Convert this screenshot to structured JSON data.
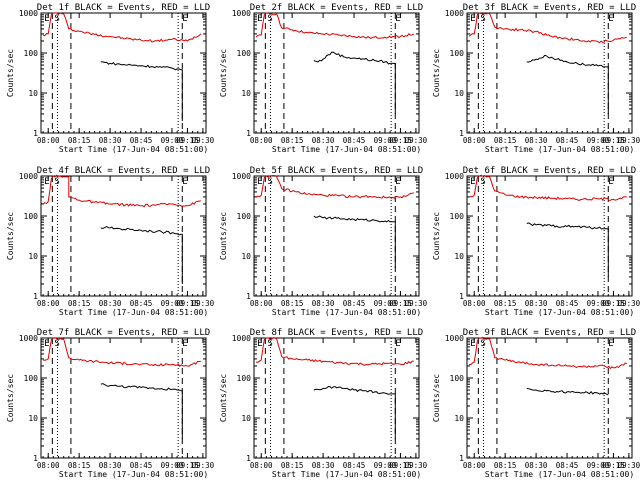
{
  "chart_data": [
    {
      "type": "line",
      "title": "Det 1f BLACK = Events, RED = LLD",
      "xlabel": "Start Time (17-Jun-04 08:51:00)",
      "ylabel": "Counts/sec",
      "x_ticks": [
        "08:00",
        "08:15",
        "08:30",
        "08:45",
        "09:00",
        "09:15",
        "09:30"
      ],
      "y_ticks": [
        "1",
        "10",
        "100",
        "1000"
      ],
      "ylim": [
        1,
        1000
      ],
      "yscale": "log",
      "marker_labels": [
        "E",
        "S",
        "E"
      ],
      "series": [
        {
          "name": "Events",
          "color": "#000000",
          "x": [
            "08:51",
            "08:55",
            "09:00",
            "09:10",
            "09:20",
            "09:30",
            "09:40",
            "09:50",
            "10:00",
            "10:05",
            "10:09",
            "10:10"
          ],
          "values": [
            60,
            58,
            55,
            52,
            50,
            48,
            46,
            44,
            42,
            40,
            38,
            2
          ]
        },
        {
          "name": "LLD",
          "color": "#dd0000",
          "x": [
            "07:55",
            "08:00",
            "08:03",
            "08:05",
            "08:15",
            "08:20",
            "08:30",
            "08:45",
            "09:00",
            "09:15",
            "09:30",
            "09:45",
            "10:00",
            "10:15",
            "10:28"
          ],
          "values": [
            280,
            300,
            900,
            1000,
            950,
            400,
            350,
            290,
            260,
            230,
            210,
            200,
            220,
            200,
            300
          ]
        }
      ]
    },
    {
      "type": "line",
      "title": "Det 2f BLACK = Events, RED = LLD",
      "xlabel": "Start Time (17-Jun-04 08:51:00)",
      "ylabel": "Counts/sec",
      "x_ticks": [
        "08:00",
        "08:15",
        "08:30",
        "08:45",
        "09:00",
        "09:15",
        "09:30"
      ],
      "y_ticks": [
        "1",
        "10",
        "100",
        "1000"
      ],
      "ylim": [
        1,
        1000
      ],
      "yscale": "log",
      "marker_labels": [
        "E",
        "S",
        "E"
      ],
      "series": [
        {
          "name": "Events",
          "color": "#000000",
          "x": [
            "08:51",
            "08:55",
            "09:00",
            "09:05",
            "09:10",
            "09:20",
            "09:30",
            "09:40",
            "09:50",
            "10:00",
            "10:05",
            "10:10"
          ],
          "values": [
            65,
            60,
            70,
            90,
            105,
            80,
            75,
            70,
            65,
            60,
            55,
            3
          ]
        },
        {
          "name": "LLD",
          "color": "#dd0000",
          "x": [
            "07:55",
            "08:00",
            "08:03",
            "08:05",
            "08:15",
            "08:20",
            "08:30",
            "08:45",
            "09:00",
            "09:15",
            "09:30",
            "09:45",
            "10:00",
            "10:15",
            "10:28"
          ],
          "values": [
            250,
            280,
            900,
            1000,
            950,
            420,
            380,
            320,
            300,
            280,
            260,
            240,
            250,
            260,
            300
          ]
        }
      ]
    },
    {
      "type": "line",
      "title": "Det 3f BLACK = Events, RED = LLD",
      "xlabel": "Start Time (17-Jun-04 08:51:00)",
      "ylabel": "Counts/sec",
      "x_ticks": [
        "08:00",
        "08:15",
        "08:30",
        "08:45",
        "09:00",
        "09:15",
        "09:30"
      ],
      "y_ticks": [
        "1",
        "10",
        "100",
        "1000"
      ],
      "ylim": [
        1,
        1000
      ],
      "yscale": "log",
      "marker_labels": [
        "E",
        "S",
        "E"
      ],
      "series": [
        {
          "name": "Events",
          "color": "#000000",
          "x": [
            "08:51",
            "08:55",
            "09:00",
            "09:10",
            "09:20",
            "09:30",
            "09:40",
            "09:50",
            "10:00",
            "10:05",
            "10:10"
          ],
          "values": [
            60,
            62,
            70,
            85,
            70,
            60,
            55,
            50,
            48,
            45,
            3
          ]
        },
        {
          "name": "LLD",
          "color": "#dd0000",
          "x": [
            "07:55",
            "08:00",
            "08:03",
            "08:05",
            "08:15",
            "08:20",
            "08:30",
            "08:45",
            "09:00",
            "09:15",
            "09:30",
            "09:45",
            "10:00",
            "10:15",
            "10:28"
          ],
          "values": [
            260,
            300,
            900,
            1000,
            950,
            450,
            400,
            380,
            340,
            260,
            230,
            200,
            190,
            210,
            250
          ]
        }
      ]
    },
    {
      "type": "line",
      "title": "Det 4f BLACK = Events, RED = LLD",
      "xlabel": "Start Time (17-Jun-04 08:51:00)",
      "ylabel": "Counts/sec",
      "x_ticks": [
        "08:00",
        "08:15",
        "08:30",
        "08:45",
        "09:00",
        "09:15",
        "09:30"
      ],
      "y_ticks": [
        "1",
        "10",
        "100",
        "1000"
      ],
      "ylim": [
        1,
        1000
      ],
      "yscale": "log",
      "marker_labels": [
        "E",
        "S",
        "E"
      ],
      "series": [
        {
          "name": "Events",
          "color": "#000000",
          "x": [
            "08:51",
            "08:55",
            "09:00",
            "09:10",
            "09:20",
            "09:30",
            "09:40",
            "09:50",
            "10:00",
            "10:05",
            "10:09",
            "10:10"
          ],
          "values": [
            50,
            52,
            50,
            48,
            46,
            44,
            42,
            40,
            38,
            36,
            35,
            2
          ]
        },
        {
          "name": "LLD",
          "color": "#dd0000",
          "x": [
            "07:55",
            "08:00",
            "08:03",
            "08:05",
            "08:15",
            "08:20",
            "08:30",
            "08:45",
            "09:00",
            "09:15",
            "09:30",
            "09:45",
            "10:00",
            "10:15",
            "10:28"
          ],
          "values": [
            200,
            230,
            850,
            1000,
            950,
            300,
            250,
            220,
            200,
            190,
            180,
            190,
            200,
            180,
            240
          ]
        }
      ]
    },
    {
      "type": "line",
      "title": "Det 5f BLACK = Events, RED = LLD",
      "xlabel": "Start Time (17-Jun-04 08:51:00)",
      "ylabel": "Counts/sec",
      "x_ticks": [
        "08:00",
        "08:15",
        "08:30",
        "08:45",
        "09:00",
        "09:15",
        "09:30"
      ],
      "y_ticks": [
        "1",
        "10",
        "100",
        "1000"
      ],
      "ylim": [
        1,
        1000
      ],
      "yscale": "log",
      "marker_labels": [
        "E",
        "S",
        "E"
      ],
      "series": [
        {
          "name": "Events",
          "color": "#000000",
          "x": [
            "08:51",
            "08:55",
            "09:00",
            "09:10",
            "09:20",
            "09:30",
            "09:40",
            "09:50",
            "10:00",
            "10:05",
            "10:10"
          ],
          "values": [
            100,
            95,
            90,
            88,
            85,
            82,
            80,
            78,
            75,
            72,
            5
          ]
        },
        {
          "name": "LLD",
          "color": "#dd0000",
          "x": [
            "07:55",
            "08:00",
            "08:03",
            "08:05",
            "08:15",
            "08:20",
            "08:30",
            "08:45",
            "09:00",
            "09:15",
            "09:30",
            "09:45",
            "10:00",
            "10:15",
            "10:28"
          ],
          "values": [
            300,
            330,
            900,
            1000,
            950,
            480,
            420,
            350,
            330,
            320,
            300,
            310,
            290,
            300,
            380
          ]
        }
      ]
    },
    {
      "type": "line",
      "title": "Det 6f BLACK = Events, RED = LLD",
      "xlabel": "Start Time (17-Jun-04 08:51:00)",
      "ylabel": "Counts/sec",
      "x_ticks": [
        "08:00",
        "08:15",
        "08:30",
        "08:45",
        "09:00",
        "09:15",
        "09:30"
      ],
      "y_ticks": [
        "1",
        "10",
        "100",
        "1000"
      ],
      "ylim": [
        1,
        1000
      ],
      "yscale": "log",
      "marker_labels": [
        "E",
        "S",
        "E"
      ],
      "series": [
        {
          "name": "Events",
          "color": "#000000",
          "x": [
            "08:51",
            "08:55",
            "09:00",
            "09:10",
            "09:20",
            "09:30",
            "09:40",
            "09:50",
            "10:00",
            "10:05",
            "10:10"
          ],
          "values": [
            65,
            62,
            60,
            58,
            56,
            55,
            54,
            52,
            50,
            48,
            3
          ]
        },
        {
          "name": "LLD",
          "color": "#dd0000",
          "x": [
            "07:55",
            "08:00",
            "08:03",
            "08:05",
            "08:15",
            "08:20",
            "08:30",
            "08:45",
            "09:00",
            "09:15",
            "09:30",
            "09:45",
            "10:00",
            "10:15",
            "10:28"
          ],
          "values": [
            300,
            330,
            900,
            1000,
            950,
            420,
            340,
            300,
            290,
            280,
            270,
            260,
            270,
            260,
            300
          ]
        }
      ]
    },
    {
      "type": "line",
      "title": "Det 7f BLACK = Events, RED = LLD",
      "xlabel": "Start Time (17-Jun-04 08:51:00)",
      "ylabel": "Counts/sec",
      "x_ticks": [
        "08:00",
        "08:15",
        "08:30",
        "08:45",
        "09:00",
        "09:15",
        "09:30"
      ],
      "y_ticks": [
        "1",
        "10",
        "100",
        "1000"
      ],
      "ylim": [
        1,
        1000
      ],
      "yscale": "log",
      "marker_labels": [
        "E",
        "S",
        "E"
      ],
      "series": [
        {
          "name": "Events",
          "color": "#000000",
          "x": [
            "08:51",
            "08:55",
            "09:00",
            "09:10",
            "09:20",
            "09:30",
            "09:40",
            "09:50",
            "10:00",
            "10:05",
            "10:09",
            "10:10"
          ],
          "values": [
            70,
            68,
            65,
            62,
            60,
            58,
            56,
            54,
            52,
            50,
            48,
            3
          ]
        },
        {
          "name": "LLD",
          "color": "#dd0000",
          "x": [
            "07:55",
            "08:00",
            "08:03",
            "08:05",
            "08:15",
            "08:20",
            "08:30",
            "08:45",
            "09:00",
            "09:15",
            "09:30",
            "09:45",
            "10:00",
            "10:15",
            "10:28"
          ],
          "values": [
            280,
            300,
            900,
            1000,
            950,
            320,
            280,
            260,
            240,
            230,
            220,
            210,
            220,
            200,
            260
          ]
        }
      ]
    },
    {
      "type": "line",
      "title": "Det 8f BLACK = Events, RED = LLD",
      "xlabel": "Start Time (17-Jun-04 08:51:00)",
      "ylabel": "Counts/sec",
      "x_ticks": [
        "08:00",
        "08:15",
        "08:30",
        "08:45",
        "09:00",
        "09:15",
        "09:30"
      ],
      "y_ticks": [
        "1",
        "10",
        "100",
        "1000"
      ],
      "ylim": [
        1,
        1000
      ],
      "yscale": "log",
      "marker_labels": [
        "E",
        "S",
        "E"
      ],
      "series": [
        {
          "name": "Events",
          "color": "#000000",
          "x": [
            "08:51",
            "08:55",
            "09:00",
            "09:10",
            "09:20",
            "09:30",
            "09:40",
            "09:50",
            "10:00",
            "10:05",
            "10:10"
          ],
          "values": [
            50,
            52,
            55,
            60,
            55,
            50,
            48,
            45,
            42,
            40,
            3
          ]
        },
        {
          "name": "LLD",
          "color": "#dd0000",
          "x": [
            "07:55",
            "08:00",
            "08:03",
            "08:05",
            "08:15",
            "08:20",
            "08:30",
            "08:45",
            "09:00",
            "09:15",
            "09:30",
            "09:45",
            "10:00",
            "10:15",
            "10:28"
          ],
          "values": [
            250,
            280,
            900,
            1000,
            950,
            340,
            300,
            280,
            260,
            240,
            230,
            220,
            230,
            220,
            260
          ]
        }
      ]
    },
    {
      "type": "line",
      "title": "Det 9f BLACK = Events, RED = LLD",
      "xlabel": "Start Time (17-Jun-04 08:51:00)",
      "ylabel": "Counts/sec",
      "x_ticks": [
        "08:00",
        "08:15",
        "08:30",
        "08:45",
        "09:00",
        "09:15",
        "09:30"
      ],
      "y_ticks": [
        "1",
        "10",
        "100",
        "1000"
      ],
      "ylim": [
        1,
        1000
      ],
      "yscale": "log",
      "marker_labels": [
        "E",
        "S",
        "E"
      ],
      "series": [
        {
          "name": "Events",
          "color": "#000000",
          "x": [
            "08:51",
            "08:55",
            "09:00",
            "09:10",
            "09:20",
            "09:30",
            "09:40",
            "09:50",
            "10:00",
            "10:05",
            "10:10"
          ],
          "values": [
            55,
            52,
            50,
            48,
            46,
            45,
            44,
            43,
            42,
            40,
            38
          ]
        },
        {
          "name": "LLD",
          "color": "#dd0000",
          "x": [
            "07:55",
            "08:00",
            "08:03",
            "08:05",
            "08:15",
            "08:20",
            "08:30",
            "08:45",
            "09:00",
            "09:15",
            "09:30",
            "09:45",
            "10:00",
            "10:15",
            "10:28"
          ],
          "values": [
            220,
            250,
            850,
            1000,
            950,
            320,
            280,
            240,
            220,
            210,
            200,
            190,
            200,
            180,
            230
          ]
        }
      ]
    }
  ]
}
